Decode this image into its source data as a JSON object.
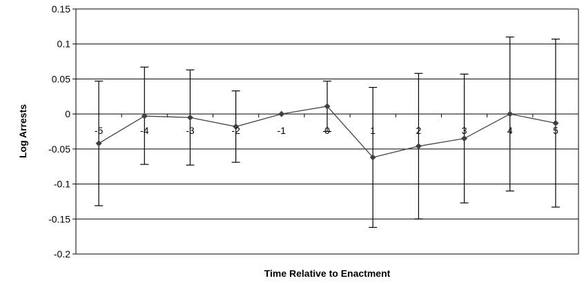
{
  "chart_data": {
    "type": "line",
    "title": "",
    "xlabel": "Time Relative to Enactment",
    "ylabel": "Log Arrests",
    "ylim": [
      -0.2,
      0.15
    ],
    "y_ticks": [
      "0.15",
      "0.1",
      "0.05",
      "0",
      "-0.05",
      "-0.1",
      "-0.15",
      "-0.2"
    ],
    "x_tick_labels": [
      "-5",
      "-4",
      "-3",
      "-2",
      "-1",
      "0",
      "1",
      "2",
      "3",
      "4",
      "5"
    ],
    "grid": "horizontal",
    "series": [
      {
        "x": [
          -5,
          -4,
          -3,
          -2,
          -1,
          0,
          1,
          2,
          3,
          4,
          5
        ],
        "values": [
          -0.042,
          -0.003,
          -0.005,
          -0.018,
          0.0,
          0.011,
          -0.062,
          -0.046,
          -0.035,
          0.0,
          -0.013
        ],
        "error_upper": [
          0.047,
          0.067,
          0.063,
          0.033,
          0.0,
          0.047,
          0.038,
          0.058,
          0.057,
          0.11,
          0.107
        ],
        "error_lower": [
          -0.131,
          -0.072,
          -0.073,
          -0.069,
          0.0,
          -0.025,
          -0.162,
          -0.15,
          -0.127,
          -0.11,
          -0.133
        ]
      }
    ],
    "colors": {
      "line": "#444444",
      "marker": "#404040",
      "grid": "#000000",
      "error_bar": "#000000"
    }
  }
}
